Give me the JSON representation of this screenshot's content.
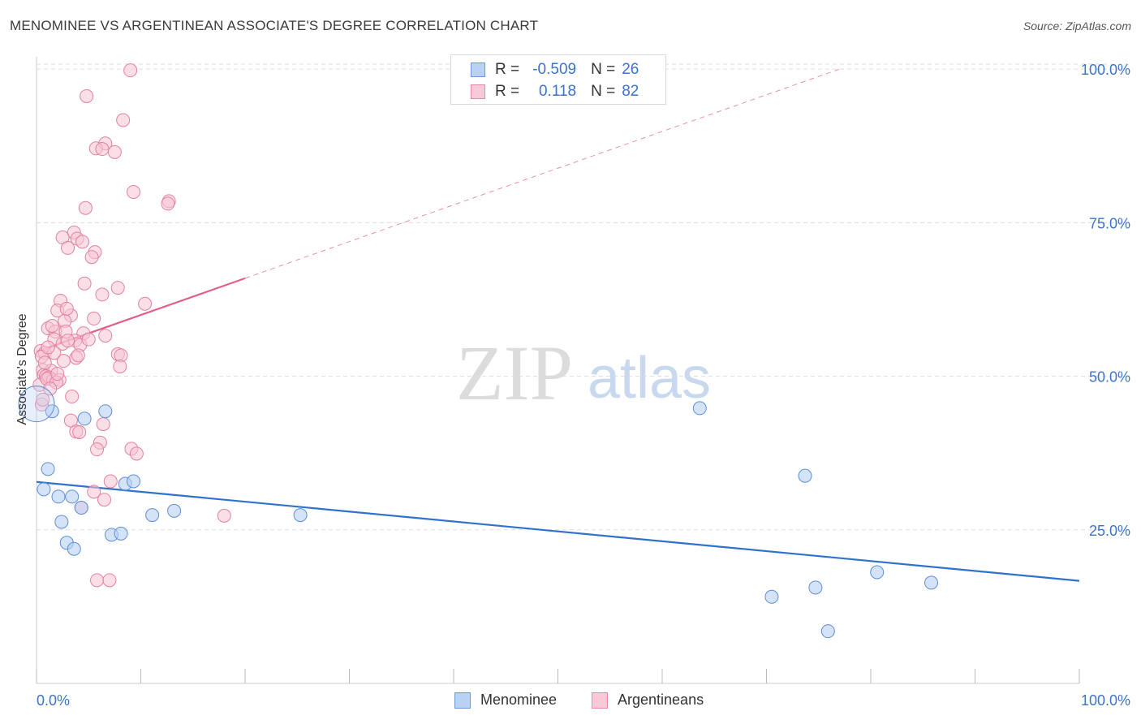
{
  "title": "MENOMINEE VS ARGENTINEAN ASSOCIATE'S DEGREE CORRELATION CHART",
  "source": "Source: ZipAtlas.com",
  "watermark": {
    "zip": "ZIP",
    "atlas": "atlas"
  },
  "legend_top": {
    "rows": [
      {
        "r_label": "R =",
        "r_value": "-0.509",
        "n_label": "N =",
        "n_value": "26"
      },
      {
        "r_label": "R =",
        "r_value": "0.118",
        "n_label": "N =",
        "n_value": "82"
      }
    ]
  },
  "legend_bottom": {
    "series1": "Menominee",
    "series2": "Argentineans"
  },
  "colors": {
    "blue_fill": "#b9d1f3",
    "blue_stroke": "#5b8fd6",
    "blue_line": "#2f72cc",
    "pink_fill": "#f7c5d4",
    "pink_stroke": "#e2819f",
    "pink_line": "#e0608c",
    "axis_text": "#3b74c8",
    "grid": "#dddddd"
  },
  "chart_data": {
    "type": "scatter",
    "title": "MENOMINEE VS ARGENTINEAN ASSOCIATE'S DEGREE CORRELATION CHART",
    "xlabel": "",
    "ylabel": "Associate's Degree",
    "xlim": [
      0,
      100
    ],
    "ylim": [
      0,
      102
    ],
    "x_tick_labels": [
      "0.0%",
      "100.0%"
    ],
    "y_ticks": [
      25,
      50,
      75,
      100
    ],
    "y_tick_labels": [
      "25.0%",
      "50.0%",
      "75.0%",
      "100.0%"
    ],
    "grid": true,
    "series": [
      {
        "name": "Menominee",
        "r": -0.509,
        "n": 26,
        "trend": {
          "x": [
            0,
            100
          ],
          "y": [
            32.8,
            16.7
          ],
          "solid_to": 100
        },
        "points": [
          {
            "x": 0.7,
            "y": 31.6
          },
          {
            "x": 1.1,
            "y": 34.9
          },
          {
            "x": 1.5,
            "y": 44.3
          },
          {
            "x": 2.1,
            "y": 30.4
          },
          {
            "x": 2.4,
            "y": 26.3
          },
          {
            "x": 2.9,
            "y": 22.9
          },
          {
            "x": 3.4,
            "y": 30.4
          },
          {
            "x": 3.6,
            "y": 21.9
          },
          {
            "x": 4.3,
            "y": 28.6
          },
          {
            "x": 4.6,
            "y": 43.1
          },
          {
            "x": 6.6,
            "y": 44.3
          },
          {
            "x": 7.2,
            "y": 24.2
          },
          {
            "x": 8.1,
            "y": 24.4
          },
          {
            "x": 8.5,
            "y": 32.5
          },
          {
            "x": 9.3,
            "y": 32.9
          },
          {
            "x": 11.1,
            "y": 27.4
          },
          {
            "x": 13.2,
            "y": 28.1
          },
          {
            "x": 25.3,
            "y": 27.4
          },
          {
            "x": 63.6,
            "y": 44.8
          },
          {
            "x": 70.5,
            "y": 14.1
          },
          {
            "x": 73.7,
            "y": 33.8
          },
          {
            "x": 74.7,
            "y": 15.6
          },
          {
            "x": 75.9,
            "y": 8.5
          },
          {
            "x": 80.6,
            "y": 18.1
          },
          {
            "x": 85.8,
            "y": 16.4
          },
          {
            "x": 0.0,
            "y": 45.5
          }
        ]
      },
      {
        "name": "Argentineans",
        "r": 0.118,
        "n": 82,
        "trend": {
          "x": [
            0,
            77
          ],
          "y": [
            54.0,
            100.0
          ],
          "solid_to": 20
        },
        "points": [
          {
            "x": 9.0,
            "y": 99.8
          },
          {
            "x": 4.8,
            "y": 95.6
          },
          {
            "x": 8.3,
            "y": 91.7
          },
          {
            "x": 6.6,
            "y": 87.9
          },
          {
            "x": 5.7,
            "y": 87.1
          },
          {
            "x": 6.3,
            "y": 87.0
          },
          {
            "x": 7.5,
            "y": 86.5
          },
          {
            "x": 9.3,
            "y": 80.0
          },
          {
            "x": 12.7,
            "y": 78.5
          },
          {
            "x": 12.6,
            "y": 78.1
          },
          {
            "x": 4.7,
            "y": 77.4
          },
          {
            "x": 3.6,
            "y": 73.4
          },
          {
            "x": 2.5,
            "y": 72.6
          },
          {
            "x": 3.9,
            "y": 72.4
          },
          {
            "x": 4.4,
            "y": 71.9
          },
          {
            "x": 3.0,
            "y": 70.9
          },
          {
            "x": 5.6,
            "y": 70.2
          },
          {
            "x": 5.3,
            "y": 69.4
          },
          {
            "x": 4.6,
            "y": 65.1
          },
          {
            "x": 7.8,
            "y": 64.4
          },
          {
            "x": 6.3,
            "y": 63.3
          },
          {
            "x": 2.3,
            "y": 62.3
          },
          {
            "x": 10.4,
            "y": 61.8
          },
          {
            "x": 2.0,
            "y": 60.7
          },
          {
            "x": 3.3,
            "y": 59.9
          },
          {
            "x": 5.5,
            "y": 59.4
          },
          {
            "x": 2.7,
            "y": 59.0
          },
          {
            "x": 1.1,
            "y": 57.8
          },
          {
            "x": 1.8,
            "y": 57.3
          },
          {
            "x": 2.8,
            "y": 57.3
          },
          {
            "x": 4.5,
            "y": 57.0
          },
          {
            "x": 6.6,
            "y": 56.6
          },
          {
            "x": 1.7,
            "y": 56.0
          },
          {
            "x": 3.7,
            "y": 55.8
          },
          {
            "x": 2.5,
            "y": 55.3
          },
          {
            "x": 4.2,
            "y": 55.1
          },
          {
            "x": 0.4,
            "y": 54.1
          },
          {
            "x": 0.8,
            "y": 53.8
          },
          {
            "x": 1.7,
            "y": 53.8
          },
          {
            "x": 7.8,
            "y": 53.6
          },
          {
            "x": 8.1,
            "y": 53.4
          },
          {
            "x": 0.5,
            "y": 53.2
          },
          {
            "x": 2.6,
            "y": 52.5
          },
          {
            "x": 3.8,
            "y": 53.0
          },
          {
            "x": 8.0,
            "y": 51.6
          },
          {
            "x": 0.6,
            "y": 51.0
          },
          {
            "x": 1.4,
            "y": 50.9
          },
          {
            "x": 0.7,
            "y": 50.2
          },
          {
            "x": 0.9,
            "y": 50.0
          },
          {
            "x": 1.2,
            "y": 49.8
          },
          {
            "x": 1.6,
            "y": 49.4
          },
          {
            "x": 2.2,
            "y": 49.4
          },
          {
            "x": 0.3,
            "y": 48.6
          },
          {
            "x": 1.0,
            "y": 49.6
          },
          {
            "x": 1.9,
            "y": 49.0
          },
          {
            "x": 1.3,
            "y": 48.0
          },
          {
            "x": 3.4,
            "y": 46.7
          },
          {
            "x": 0.5,
            "y": 45.4
          },
          {
            "x": 3.3,
            "y": 42.8
          },
          {
            "x": 6.4,
            "y": 42.2
          },
          {
            "x": 3.8,
            "y": 41.0
          },
          {
            "x": 4.1,
            "y": 40.9
          },
          {
            "x": 6.1,
            "y": 39.2
          },
          {
            "x": 5.8,
            "y": 38.1
          },
          {
            "x": 9.1,
            "y": 38.2
          },
          {
            "x": 9.6,
            "y": 37.4
          },
          {
            "x": 7.1,
            "y": 32.9
          },
          {
            "x": 5.5,
            "y": 31.2
          },
          {
            "x": 6.5,
            "y": 29.9
          },
          {
            "x": 4.3,
            "y": 28.6
          },
          {
            "x": 18.0,
            "y": 27.3
          },
          {
            "x": 5.8,
            "y": 16.8
          },
          {
            "x": 7.0,
            "y": 16.8
          },
          {
            "x": 2.0,
            "y": 50.4
          },
          {
            "x": 0.8,
            "y": 52.2
          },
          {
            "x": 3.0,
            "y": 55.8
          },
          {
            "x": 4.0,
            "y": 53.4
          },
          {
            "x": 1.5,
            "y": 58.2
          },
          {
            "x": 2.9,
            "y": 61.0
          },
          {
            "x": 0.6,
            "y": 46.2
          },
          {
            "x": 5.0,
            "y": 56.0
          },
          {
            "x": 1.1,
            "y": 54.7
          }
        ]
      }
    ]
  }
}
